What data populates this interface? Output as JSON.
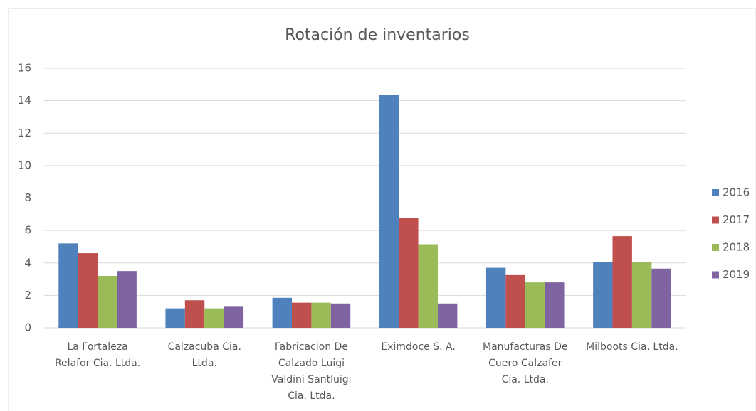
{
  "chart_data": {
    "type": "bar",
    "title": "Rotación de inventarios",
    "categories": [
      "La Fortaleza Relafor Cia. Ltda.",
      "Calzacuba Cia. Ltda.",
      "Fabricacion De Calzado Luigi Valdini Santluigi Cia. Ltda.",
      "Eximdoce S. A.",
      "Manufacturas De Cuero Calzafer Cia. Ltda.",
      "Milboots Cia. Ltda."
    ],
    "series": [
      {
        "name": "2016",
        "color": "#4f81bd",
        "values": [
          5.2,
          1.2,
          1.85,
          14.35,
          3.7,
          4.05
        ]
      },
      {
        "name": "2017",
        "color": "#c0504d",
        "values": [
          4.6,
          1.7,
          1.55,
          6.75,
          3.25,
          5.65
        ]
      },
      {
        "name": "2018",
        "color": "#9bbb59",
        "values": [
          3.2,
          1.2,
          1.55,
          5.15,
          2.8,
          4.05
        ]
      },
      {
        "name": "2019",
        "color": "#8064a2",
        "values": [
          3.5,
          1.3,
          1.5,
          1.5,
          2.8,
          3.65
        ]
      }
    ],
    "ylim": [
      0,
      16
    ],
    "yticks": [
      0,
      2,
      4,
      6,
      8,
      10,
      12,
      14,
      16
    ],
    "grid": true,
    "legend": "right"
  }
}
